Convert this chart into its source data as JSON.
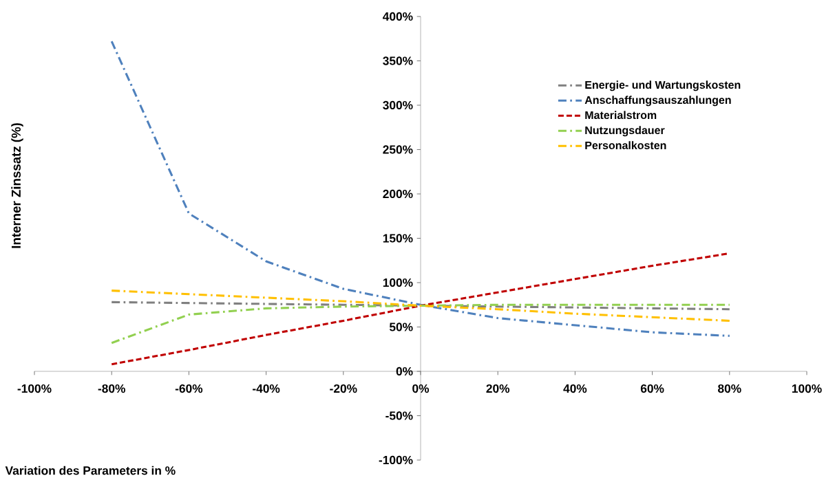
{
  "chart_data": {
    "type": "line",
    "xlabel": "Variation des Parameters  in %",
    "ylabel": "Interner Zinssatz (%)",
    "x": [
      -80,
      -60,
      -40,
      -20,
      0,
      20,
      40,
      60,
      80
    ],
    "series": [
      {
        "name": "Energie- und Wartungskosten",
        "color": "#808080",
        "line_style": "dashdot",
        "values": [
          78,
          77,
          76,
          75,
          74,
          73,
          72,
          71,
          70
        ]
      },
      {
        "name": "Anschaffungsauszahlungen",
        "color": "#4f81bd",
        "line_style": "dashdot",
        "values": [
          372,
          178,
          124,
          93,
          75,
          60,
          52,
          44,
          40
        ]
      },
      {
        "name": "Materialstrom",
        "color": "#c00000",
        "line_style": "dashed",
        "values": [
          8,
          24,
          41,
          57,
          74,
          89,
          104,
          119,
          133
        ]
      },
      {
        "name": "Nutzungsdauer",
        "color": "#92d050",
        "line_style": "dashdot",
        "values": [
          32,
          64,
          71,
          73,
          74,
          75,
          75,
          75,
          75
        ]
      },
      {
        "name": "Personalkosten",
        "color": "#ffc000",
        "line_style": "dashdot",
        "values": [
          91,
          87,
          83,
          79,
          74,
          70,
          65,
          61,
          57
        ]
      }
    ],
    "xlim": [
      -100,
      100
    ],
    "ylim": [
      -100,
      400
    ],
    "xticks": [
      {
        "value": -100,
        "label": "-100%"
      },
      {
        "value": -80,
        "label": "-80%"
      },
      {
        "value": -60,
        "label": "-60%"
      },
      {
        "value": -40,
        "label": "-40%"
      },
      {
        "value": -20,
        "label": "-20%"
      },
      {
        "value": 0,
        "label": "0%"
      },
      {
        "value": 20,
        "label": "20%"
      },
      {
        "value": 40,
        "label": "40%"
      },
      {
        "value": 60,
        "label": "60%"
      },
      {
        "value": 80,
        "label": "80%"
      },
      {
        "value": 100,
        "label": "100%"
      }
    ],
    "yticks": [
      {
        "value": -100,
        "label": "-100%"
      },
      {
        "value": -50,
        "label": "-50%"
      },
      {
        "value": 0,
        "label": "0%"
      },
      {
        "value": 50,
        "label": "50%"
      },
      {
        "value": 100,
        "label": "100%"
      },
      {
        "value": 150,
        "label": "150%"
      },
      {
        "value": 200,
        "label": "200%"
      },
      {
        "value": 250,
        "label": "250%"
      },
      {
        "value": 300,
        "label": "300%"
      },
      {
        "value": 350,
        "label": "350%"
      },
      {
        "value": 400,
        "label": "400%"
      }
    ],
    "grid": false,
    "legend": "top right",
    "marker": "none"
  }
}
